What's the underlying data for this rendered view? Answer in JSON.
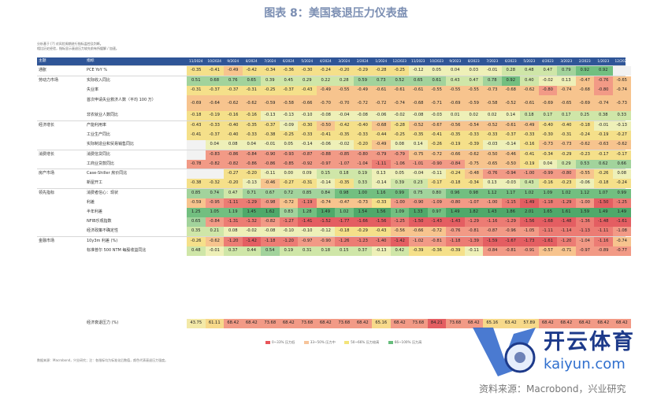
{
  "title": "图表 8：美国衰退压力仪表盘",
  "notes": [
    "分析基于 [?] 对风险周期进行指标监控及判断。",
    "相比历史经验，指标显示衰退压力较先前有所缓解 / 加速。"
  ],
  "header": {
    "theme": "主题",
    "indicator": "指标",
    "months": [
      "11/2024",
      "10/2024",
      "9/2024",
      "8/2024",
      "7/2024",
      "6/2024",
      "5/2024",
      "4/2024",
      "3/2024",
      "2/2024",
      "1/2024",
      "12/2023",
      "11/2023",
      "10/2023",
      "9/2023",
      "8/2023",
      "7/2023",
      "6/2023",
      "5/2023",
      "4/2023",
      "3/2023",
      "2/2023",
      "1/2023",
      "12/2022"
    ]
  },
  "rows": [
    {
      "theme": "通胀",
      "name": "PCE YoY %",
      "values": [
        "-0.35",
        "-0.41",
        "-0.49",
        "-0.42",
        "-0.34",
        "-0.36",
        "-0.30",
        "-0.24",
        "-0.20",
        "-0.29",
        "-0.28",
        "-0.25",
        "-0.12",
        "0.05",
        "0.04",
        "0.03",
        "-0.01",
        "0.28",
        "0.48",
        "0.47",
        "0.79",
        "0.92",
        "0.92",
        ""
      ]
    },
    {
      "theme": "劳动力市场",
      "name": "实际收入同比",
      "values": [
        "0.51",
        "0.68",
        "0.76",
        "0.65",
        "0.39",
        "0.45",
        "0.29",
        "0.22",
        "0.28",
        "0.59",
        "0.73",
        "0.52",
        "0.65",
        "0.61",
        "0.43",
        "0.47",
        "0.78",
        "0.92",
        "0.40",
        "-0.02",
        "0.13",
        "-0.47",
        "-0.76",
        "-0.65"
      ]
    },
    {
      "theme": "",
      "name": "失业率",
      "values": [
        "-0.31",
        "-0.37",
        "-0.37",
        "-0.31",
        "-0.25",
        "-0.37",
        "-0.43",
        "-0.49",
        "-0.55",
        "-0.49",
        "-0.61",
        "-0.61",
        "-0.61",
        "-0.55",
        "-0.55",
        "-0.55",
        "-0.73",
        "-0.68",
        "-0.62",
        "-0.80",
        "-0.74",
        "-0.68",
        "-0.80",
        "-0.74"
      ]
    },
    {
      "theme": "",
      "name": "首次申请失业救济人数（平均 100 万）",
      "tall": true,
      "values": [
        "-0.69",
        "-0.64",
        "-0.62",
        "-0.62",
        "-0.59",
        "-0.58",
        "-0.66",
        "-0.70",
        "-0.70",
        "-0.72",
        "-0.72",
        "-0.74",
        "-0.68",
        "-0.71",
        "-0.69",
        "-0.59",
        "-0.58",
        "-0.52",
        "-0.61",
        "-0.69",
        "-0.65",
        "-0.69",
        "-0.74",
        "-0.73"
      ]
    },
    {
      "theme": "",
      "name": "非农就业人数同比",
      "values": [
        "-0.18",
        "-0.19",
        "-0.16",
        "-0.16",
        "-0.13",
        "-0.13",
        "-0.10",
        "-0.08",
        "-0.04",
        "-0.08",
        "-0.06",
        "-0.02",
        "-0.08",
        "-0.03",
        "0.01",
        "0.02",
        "0.02",
        "0.14",
        "0.18",
        "0.17",
        "0.17",
        "0.25",
        "0.38",
        "0.33"
      ]
    },
    {
      "theme": "经济增长",
      "name": "产能利用率",
      "values": [
        "-0.43",
        "-0.33",
        "-0.40",
        "-0.35",
        "-0.37",
        "-0.09",
        "-0.30",
        "-0.50",
        "-0.42",
        "-0.40",
        "-0.68",
        "-0.28",
        "-0.52",
        "-0.67",
        "-0.56",
        "-0.54",
        "-0.52",
        "-0.61",
        "-0.49",
        "-0.40",
        "-0.40",
        "-0.18",
        "-0.01",
        "-0.13"
      ]
    },
    {
      "theme": "",
      "name": "工业生产同比",
      "values": [
        "-0.41",
        "-0.37",
        "-0.40",
        "-0.33",
        "-0.38",
        "-0.25",
        "-0.33",
        "-0.41",
        "-0.35",
        "-0.33",
        "-0.44",
        "-0.25",
        "-0.35",
        "-0.41",
        "-0.35",
        "-0.33",
        "-0.33",
        "-0.37",
        "-0.33",
        "-0.30",
        "-0.31",
        "-0.24",
        "-0.19",
        "-0.27"
      ]
    },
    {
      "theme": "",
      "name": "实际制造业和贸易销售同比",
      "values": [
        "",
        "0.04",
        "0.08",
        "0.04",
        "-0.01",
        "0.05",
        "-0.14",
        "-0.06",
        "-0.02",
        "-0.20",
        "-0.49",
        "0.08",
        "0.14",
        "-0.26",
        "-0.19",
        "-0.39",
        "-0.03",
        "-0.14",
        "-0.16",
        "-0.73",
        "-0.73",
        "-0.62",
        "-0.63",
        "-0.62"
      ]
    },
    {
      "theme": "消费增长",
      "name": "消费信贷同比",
      "values": [
        "",
        "-0.83",
        "-0.86",
        "-0.84",
        "-0.90",
        "-0.93",
        "-0.87",
        "-0.88",
        "-0.85",
        "-0.80",
        "-0.79",
        "-0.79",
        "-0.75",
        "-0.72",
        "-0.66",
        "-0.62",
        "-0.50",
        "-0.46",
        "-0.41",
        "-0.34",
        "-0.29",
        "-0.23",
        "-0.17",
        "-0.17"
      ]
    },
    {
      "theme": "",
      "name": "工商业贷款同比",
      "values": [
        "-0.78",
        "-0.82",
        "-0.82",
        "-0.86",
        "-0.86",
        "-0.85",
        "-0.92",
        "-0.97",
        "-1.07",
        "-1.04",
        "-1.11",
        "-1.06",
        "-1.01",
        "-0.90",
        "-0.84",
        "-0.75",
        "-0.65",
        "-0.50",
        "-0.19",
        "0.04",
        "0.29",
        "0.53",
        "0.62",
        "0.66"
      ]
    },
    {
      "theme": "房产市场",
      "name": "Case-Shiller 房价同比",
      "values": [
        "",
        "",
        "-0.27",
        "-0.20",
        "-0.11",
        "0.00",
        "0.09",
        "0.15",
        "0.18",
        "0.19",
        "0.13",
        "0.05",
        "-0.04",
        "-0.11",
        "-0.24",
        "-0.48",
        "-0.76",
        "-0.94",
        "-1.00",
        "-0.99",
        "-0.80",
        "-0.55",
        "-0.26",
        "0.08"
      ]
    },
    {
      "theme": "",
      "name": "新屋开工",
      "values": [
        "-0.38",
        "-0.32",
        "-0.20",
        "-0.13",
        "-0.46",
        "-0.27",
        "-0.31",
        "-0.14",
        "-0.35",
        "0.33",
        "-0.14",
        "0.39",
        "0.23",
        "-0.17",
        "-0.18",
        "-0.34",
        "0.13",
        "-0.03",
        "0.43",
        "-0.16",
        "-0.23",
        "-0.06",
        "-0.18",
        "-0.24"
      ]
    },
    {
      "theme": "领先指标",
      "name": "消费者信心：现状",
      "values": [
        "0.85",
        "0.74",
        "0.47",
        "0.71",
        "0.67",
        "0.72",
        "0.85",
        "0.84",
        "0.98",
        "1.00",
        "1.16",
        "0.99",
        "0.75",
        "0.80",
        "0.96",
        "0.98",
        "1.12",
        "1.17",
        "1.02",
        "1.09",
        "1.02",
        "1.12",
        "1.07",
        "0.99"
      ]
    },
    {
      "theme": "",
      "name": "利差",
      "values": [
        "-0.59",
        "-0.95",
        "-1.11",
        "-1.29",
        "-0.98",
        "-0.72",
        "-1.19",
        "-0.74",
        "-0.47",
        "-0.73",
        "-0.33",
        "-1.00",
        "-0.90",
        "-1.09",
        "-0.80",
        "-1.07",
        "-1.00",
        "-1.15",
        "-1.49",
        "-1.18",
        "-1.29",
        "-1.00",
        "-1.50",
        "-1.25"
      ]
    },
    {
      "theme": "",
      "name": "半年利差",
      "values": [
        "1.25",
        "1.05",
        "1.19",
        "1.45",
        "1.62",
        "0.83",
        "1.28",
        "1.49",
        "1.02",
        "1.54",
        "1.56",
        "1.09",
        "1.33",
        "0.97",
        "1.49",
        "1.82",
        "1.43",
        "1.86",
        "2.01",
        "1.65",
        "1.61",
        "1.59",
        "1.49",
        "1.49"
      ]
    },
    {
      "theme": "",
      "name": "NFIB乐观指数",
      "values": [
        "0.65",
        "-0.84",
        "-1.31",
        "-1.32",
        "-0.82",
        "-1.27",
        "-1.41",
        "-1.52",
        "-1.77",
        "-1.66",
        "-1.56",
        "-1.25",
        "-1.50",
        "-1.43",
        "-1.43",
        "-1.29",
        "-1.16",
        "-1.29",
        "-1.56",
        "-1.68",
        "-1.48",
        "-1.36",
        "-1.48",
        "-1.61"
      ]
    },
    {
      "theme": "",
      "name": "经济政策不确定性",
      "values": [
        "0.35",
        "0.21",
        "0.08",
        "-0.02",
        "-0.08",
        "-0.10",
        "-0.10",
        "-0.12",
        "-0.18",
        "-0.29",
        "-0.43",
        "-0.56",
        "-0.66",
        "-0.72",
        "-0.76",
        "-0.81",
        "-0.87",
        "-0.96",
        "-1.05",
        "-1.11",
        "-1.14",
        "-1.13",
        "-1.11",
        "-1.08"
      ]
    },
    {
      "theme": "金融市场",
      "name": "10y3m 利差 (%)",
      "values": [
        "-0.26",
        "-0.62",
        "-1.20",
        "-1.42",
        "-1.18",
        "-1.20",
        "-0.97",
        "-0.90",
        "-1.26",
        "-1.23",
        "-1.40",
        "-1.42",
        "-1.02",
        "-0.81",
        "-1.18",
        "-1.39",
        "-1.59",
        "-1.67",
        "-1.73",
        "-1.61",
        "-1.20",
        "-1.04",
        "-1.16",
        "-0.74"
      ]
    },
    {
      "theme": "",
      "name": "标准普尔 500 NTM 每股收益同比",
      "values": [
        "0.48",
        "-0.01",
        "0.37",
        "0.44",
        "0.54",
        "0.19",
        "0.31",
        "0.18",
        "0.15",
        "0.37",
        "-0.13",
        "0.42",
        "-0.39",
        "-0.36",
        "-0.39",
        "-0.11",
        "-0.84",
        "-0.81",
        "-0.91",
        "-0.57",
        "-0.71",
        "-0.97",
        "-0.89",
        "-0.77"
      ]
    }
  ],
  "total": {
    "name": "经济衰退压力 (%)",
    "values": [
      "43.75",
      "61.11",
      "68.42",
      "68.42",
      "73.68",
      "68.42",
      "73.68",
      "68.42",
      "73.68",
      "68.42",
      "65.16",
      "68.42",
      "73.68",
      "84.21",
      "73.68",
      "68.42",
      "65.16",
      "63.42",
      "57.89",
      "68.42",
      "68.42",
      "68.42",
      "68.42",
      "68.42"
    ]
  },
  "legend": [
    "0~33% 压力低",
    "33~50% 压力中",
    "50~66% 压力较高",
    "66~100% 压力高"
  ],
  "footnote": "数据来源：Macrobond，兴业研究；注：各指标均为标准化后数值，颜色代表衰退压力强度。",
  "watermark": {
    "cn": "开云体育",
    "en": "kaiyun.com"
  },
  "source": "资料来源：Macrobond，兴业研究"
}
